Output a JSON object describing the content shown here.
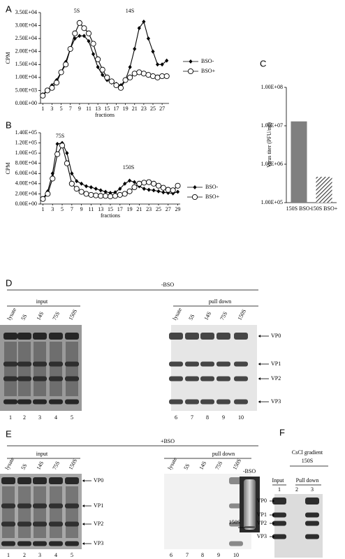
{
  "chart_data": [
    {
      "type": "line",
      "panel": "A",
      "ylabel": "CPM",
      "xlabel": "fractions",
      "annotations": [
        "5S",
        "14S"
      ],
      "x": [
        1,
        2,
        3,
        4,
        5,
        6,
        7,
        8,
        9,
        10,
        11,
        12,
        13,
        14,
        15,
        16,
        17,
        18,
        19,
        20,
        21,
        22,
        23,
        24,
        25,
        26,
        27,
        28
      ],
      "xlim": [
        0.5,
        28.5
      ],
      "xticks": [
        1,
        3,
        5,
        7,
        9,
        11,
        13,
        15,
        17,
        19,
        21,
        23,
        25,
        27
      ],
      "ylim": [
        0,
        35000
      ],
      "yticks": [
        {
          "value": 0,
          "label": "0.00E+00"
        },
        {
          "value": 5000,
          "label": "5.00E+03"
        },
        {
          "value": 10000,
          "label": "1.00E+04"
        },
        {
          "value": 15000,
          "label": "1.50E+04"
        },
        {
          "value": 20000,
          "label": "2.00E+04"
        },
        {
          "value": 25000,
          "label": "2.50E+04"
        },
        {
          "value": 30000,
          "label": "3.00E+04"
        },
        {
          "value": 35000,
          "label": "3.50E+04"
        }
      ],
      "series": [
        {
          "name": "BSO-",
          "color": "#000000",
          "marker": "diamond",
          "values": [
            3500,
            5000,
            7000,
            9000,
            12000,
            16000,
            21000,
            25000,
            26000,
            26000,
            24000,
            19000,
            14000,
            11000,
            9000,
            8000,
            7500,
            7000,
            9000,
            14000,
            21000,
            29000,
            31500,
            25000,
            20000,
            15000,
            15000,
            16500
          ]
        },
        {
          "name": "BSO+",
          "color": "#000000",
          "marker": "circle-open",
          "values": [
            3000,
            5000,
            6000,
            8000,
            12000,
            15000,
            21000,
            27000,
            31000,
            29000,
            27000,
            23000,
            17000,
            13000,
            10000,
            8500,
            7000,
            6000,
            9000,
            10000,
            11500,
            12000,
            11500,
            11000,
            10500,
            10000,
            10500,
            10500
          ]
        }
      ]
    },
    {
      "type": "line",
      "panel": "B",
      "ylabel": "CPM",
      "xlabel": "fractions",
      "annotations": [
        "75S",
        "150S"
      ],
      "x": [
        1,
        2,
        3,
        4,
        5,
        6,
        7,
        8,
        9,
        10,
        11,
        12,
        13,
        14,
        15,
        16,
        17,
        18,
        19,
        20,
        21,
        22,
        23,
        24,
        25,
        26,
        27,
        28,
        29
      ],
      "xlim": [
        0.5,
        29.5
      ],
      "xticks": [
        1,
        3,
        5,
        7,
        9,
        11,
        13,
        15,
        17,
        19,
        21,
        23,
        25,
        27,
        29
      ],
      "ylim": [
        0,
        140000
      ],
      "yticks": [
        {
          "value": 0,
          "label": "0.00E+00"
        },
        {
          "value": 20000,
          "label": "2.00E+04"
        },
        {
          "value": 40000,
          "label": "4.00E+04"
        },
        {
          "value": 60000,
          "label": "6.00E+04"
        },
        {
          "value": 80000,
          "label": "8.00E+04"
        },
        {
          "value": 100000,
          "label": "1.00E+05"
        },
        {
          "value": 120000,
          "label": "1.20E+05"
        },
        {
          "value": 140000,
          "label": "1.40E+05"
        }
      ],
      "series": [
        {
          "name": "BSO-",
          "color": "#000000",
          "marker": "diamond",
          "values": [
            10000,
            25000,
            60000,
            118000,
            120000,
            100000,
            60000,
            45000,
            40000,
            35000,
            33000,
            30000,
            27000,
            24000,
            22000,
            23000,
            30000,
            40000,
            46000,
            43000,
            35000,
            30000,
            28000,
            27000,
            25000,
            23000,
            22000,
            21000,
            24000
          ]
        },
        {
          "name": "BSO+",
          "color": "#000000",
          "marker": "circle-open",
          "values": [
            10000,
            20000,
            50000,
            98000,
            115000,
            80000,
            40000,
            30000,
            24000,
            20000,
            18000,
            17000,
            16000,
            16000,
            15000,
            16000,
            18000,
            20000,
            25000,
            33000,
            40000,
            42000,
            43000,
            40000,
            36000,
            32000,
            28000,
            27000,
            36000
          ]
        }
      ]
    },
    {
      "type": "bar",
      "panel": "C",
      "ylabel": "Virus titer (PFU/ml)",
      "log_scale": true,
      "categories": [
        "150S BSO-",
        "150S BSO+"
      ],
      "values": [
        13000000,
        470000
      ],
      "color": "#7f7f7f",
      "bar_styles": [
        "solid",
        "hatched"
      ],
      "ylim": [
        100000,
        100000000
      ],
      "yticks": [
        {
          "value": 100000,
          "label": "1.00E+05"
        },
        {
          "value": 1000000,
          "label": "1.00E+06"
        },
        {
          "value": 10000000,
          "label": "1.00E+07"
        },
        {
          "value": 100000000,
          "label": "1.00E+08"
        }
      ]
    }
  ],
  "gels": [
    {
      "panel": "D",
      "condition": "-BSO",
      "groups": [
        "input",
        "pull down"
      ],
      "lanes": [
        "lysate",
        "5S",
        "14S",
        "75S",
        "150S",
        "lysate",
        "5S",
        "14S",
        "75S",
        "150S"
      ],
      "lane_numbers": [
        1,
        2,
        3,
        4,
        5,
        6,
        7,
        8,
        9,
        10
      ],
      "bands": [
        "VP0",
        "VP1",
        "VP2",
        "VP3"
      ]
    },
    {
      "panel": "E",
      "condition": "+BSO",
      "groups": [
        "input",
        "pull down"
      ],
      "lanes": [
        "lysate",
        "5S",
        "14S",
        "75S",
        "150S",
        "lysate",
        "5S",
        "14S",
        "75S",
        "150S"
      ],
      "lane_numbers": [
        1,
        2,
        3,
        4,
        5,
        6,
        7,
        8,
        9,
        10
      ],
      "bands": [
        "VP0",
        "VP1",
        "VP2",
        "VP3"
      ]
    },
    {
      "panel": "F",
      "condition": "-BSO",
      "title": [
        "CsCl gradient",
        "150S"
      ],
      "groups": [
        "Input",
        "Pull down"
      ],
      "lanes": [],
      "lane_numbers": [
        1,
        2,
        3
      ],
      "bands": [
        "VP0",
        "VP1",
        "VP2",
        "VP3"
      ],
      "tube_band": "150S"
    }
  ]
}
